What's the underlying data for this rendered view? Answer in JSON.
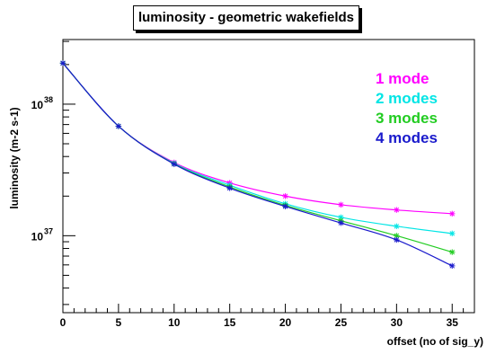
{
  "chart_data": {
    "type": "line",
    "title": "luminosity - geometric wakefields",
    "xlabel": "offset (no of sig_y)",
    "ylabel": "luminosity (m-2 s-1)",
    "xlim": [
      0,
      37
    ],
    "ylim": [
      2.6e+36,
      3.1e+38
    ],
    "yscale": "log",
    "x": [
      0,
      5,
      10,
      15,
      20,
      25,
      30,
      35
    ],
    "x_ticks": [
      0,
      5,
      10,
      15,
      20,
      25,
      30,
      35
    ],
    "x_tick_labels": [
      "0",
      "5",
      "10",
      "15",
      "20",
      "25",
      "30",
      "35"
    ],
    "y_ticks": [
      {
        "value": 1e+37,
        "base": "10",
        "exp": "37"
      },
      {
        "value": 1e+38,
        "base": "10",
        "exp": "38"
      }
    ],
    "legend_position": "top-right",
    "series": [
      {
        "name": "1 mode",
        "color": "#ff00ff",
        "values": [
          2.05e+38,
          6.8e+37,
          3.6e+37,
          2.52e+37,
          2e+37,
          1.72e+37,
          1.57e+37,
          1.47e+37
        ]
      },
      {
        "name": "2 modes",
        "color": "#00e5e5",
        "values": [
          2.05e+38,
          6.8e+37,
          3.55e+37,
          2.42e+37,
          1.75e+37,
          1.38e+37,
          1.18e+37,
          1.04e+37
        ]
      },
      {
        "name": "3 modes",
        "color": "#22cc22",
        "values": [
          2.05e+38,
          6.8e+37,
          3.52e+37,
          2.35e+37,
          1.7e+37,
          1.3e+37,
          1e+37,
          7.5e+36
        ]
      },
      {
        "name": "4 modes",
        "color": "#1a1acc",
        "values": [
          2.05e+38,
          6.8e+37,
          3.5e+37,
          2.3e+37,
          1.67e+37,
          1.25e+37,
          9.3e+36,
          5.9e+36
        ]
      }
    ]
  }
}
